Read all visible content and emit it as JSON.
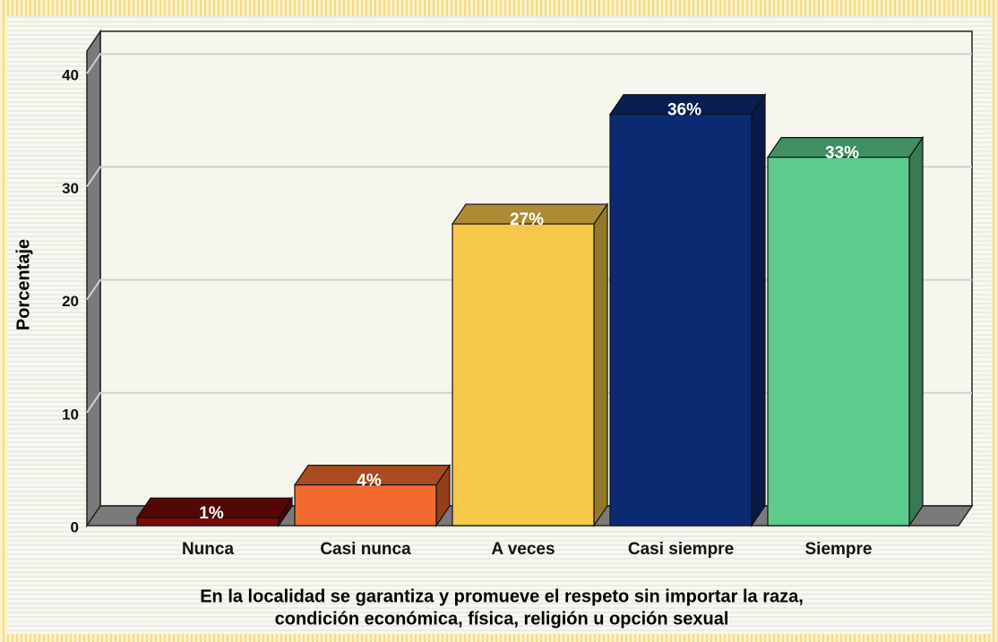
{
  "chart_data": {
    "type": "bar3d",
    "ylabel": "Porcentaje",
    "xlabel": [
      "En la localidad se garantiza y promueve el respeto sin importar la raza,",
      "condición económica, física, religión u opción sexual"
    ],
    "categories": [
      "Nunca",
      "Casi nunca",
      "A veces",
      "Casi siempre",
      "Siempre"
    ],
    "values": [
      0.7,
      3.6,
      26.7,
      36.4,
      32.6
    ],
    "value_labels": [
      "1%",
      "4%",
      "27%",
      "36%",
      "33%"
    ],
    "colors": [
      "#7a0a0a",
      "#f26a2e",
      "#f5c84a",
      "#0b2a72",
      "#5ccb8c"
    ],
    "ylim": [
      0,
      42
    ],
    "yticks": [
      0,
      10,
      20,
      30,
      40
    ],
    "grid": true
  }
}
